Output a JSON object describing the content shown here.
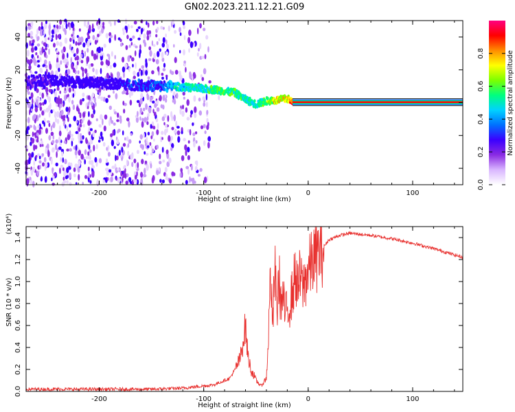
{
  "figure": {
    "title": "GN02.2023.211.12.21.G09"
  },
  "chart_data": [
    {
      "type": "heatmap",
      "title": "",
      "xlabel": "Height of straight line (km)",
      "ylabel": "Frequency (Hz)",
      "xlim": [
        -270,
        148
      ],
      "ylim": [
        -50,
        50
      ],
      "x_ticks": [
        -200,
        -100,
        0,
        100
      ],
      "y_ticks": [
        -40,
        -20,
        0,
        20,
        40
      ],
      "colorbar": {
        "label": "Normalized spectral amplitude",
        "range": [
          0.0,
          1.0
        ],
        "ticks": [
          0.0,
          0.2,
          0.4,
          0.6,
          0.8
        ],
        "colormap": [
          "#ffffff",
          "#d9b6ff",
          "#8a2be2",
          "#3b00ff",
          "#0070ff",
          "#00d2ff",
          "#00ff7f",
          "#7cff00",
          "#ffff00",
          "#ff8c00",
          "#ff0000",
          "#ff0080"
        ]
      },
      "ridge": [
        {
          "x": -270,
          "y": 14,
          "amp": 0.25
        },
        {
          "x": -240,
          "y": 13,
          "amp": 0.3
        },
        {
          "x": -200,
          "y": 12,
          "amp": 0.3
        },
        {
          "x": -170,
          "y": 11,
          "amp": 0.32
        },
        {
          "x": -140,
          "y": 10,
          "amp": 0.35
        },
        {
          "x": -130,
          "y": 10,
          "amp": 0.5
        },
        {
          "x": -110,
          "y": 9,
          "amp": 0.55
        },
        {
          "x": -90,
          "y": 8,
          "amp": 0.6
        },
        {
          "x": -70,
          "y": 6,
          "amp": 0.6
        },
        {
          "x": -60,
          "y": 2,
          "amp": 0.55
        },
        {
          "x": -50,
          "y": -1,
          "amp": 0.55
        },
        {
          "x": -40,
          "y": 1,
          "amp": 0.65
        },
        {
          "x": -30,
          "y": 1.5,
          "amp": 0.8
        },
        {
          "x": -20,
          "y": 2.5,
          "amp": 0.8
        },
        {
          "x": -15,
          "y": 0.5,
          "amp": 0.9
        },
        {
          "x": 0,
          "y": 0.3,
          "amp": 0.95
        },
        {
          "x": 148,
          "y": 0.3,
          "amp": 0.95
        }
      ]
    },
    {
      "type": "line",
      "title": "",
      "xlabel": "Height of straight line (km)",
      "ylabel": "SNR (10 * v/v)",
      "y_multiplier": "(x10⁴)",
      "xlim": [
        -270,
        148
      ],
      "ylim": [
        0,
        1.5
      ],
      "x_ticks": [
        -200,
        -100,
        0,
        100
      ],
      "y_ticks": [
        0.0,
        0.2,
        0.4,
        0.6,
        0.8,
        1.0,
        1.2,
        1.4
      ],
      "series": [
        {
          "color": "#e8312f",
          "x": [
            -270,
            -250,
            -200,
            -150,
            -120,
            -100,
            -90,
            -80,
            -75,
            -70,
            -65,
            -60,
            -58,
            -55,
            -52,
            -50,
            -45,
            -40,
            -38,
            -36,
            -34,
            -32,
            -30,
            -28,
            -26,
            -24,
            -22,
            -20,
            -18,
            -15,
            -12,
            -10,
            -8,
            -5,
            0,
            5,
            10,
            15,
            20,
            30,
            40,
            50,
            60,
            80,
            100,
            120,
            148
          ],
          "y": [
            0.02,
            0.02,
            0.02,
            0.02,
            0.03,
            0.05,
            0.06,
            0.1,
            0.12,
            0.2,
            0.3,
            0.6,
            0.35,
            0.2,
            0.15,
            0.1,
            0.05,
            0.12,
            0.5,
            1.12,
            0.55,
            1.15,
            0.7,
            1.05,
            0.8,
            0.85,
            0.7,
            0.75,
            0.78,
            0.9,
            1.08,
            0.92,
            1.03,
            0.95,
            1.1,
            1.2,
            1.25,
            1.32,
            1.38,
            1.42,
            1.44,
            1.43,
            1.42,
            1.39,
            1.35,
            1.3,
            1.22
          ]
        }
      ]
    }
  ]
}
